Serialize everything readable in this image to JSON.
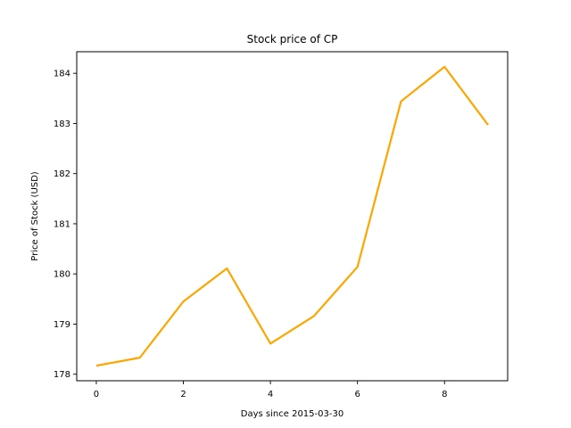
{
  "chart_data": {
    "type": "line",
    "title": "Stock price of CP",
    "xlabel": "Days since 2015-03-30",
    "ylabel": "Price of Stock (USD)",
    "x": [
      0,
      1,
      2,
      3,
      4,
      5,
      6,
      7,
      8,
      9
    ],
    "series": [
      {
        "values": [
          178.17,
          178.33,
          179.45,
          180.11,
          178.61,
          179.16,
          180.14,
          183.44,
          184.13,
          182.97
        ],
        "color": "#ffa500"
      }
    ],
    "xlim": [
      -0.45,
      9.45
    ],
    "ylim": [
      177.87,
      184.43
    ],
    "xticks": [
      0,
      2,
      4,
      6,
      8
    ],
    "yticks": [
      178,
      179,
      180,
      181,
      182,
      183,
      184
    ],
    "grid": false,
    "legend": "none"
  }
}
